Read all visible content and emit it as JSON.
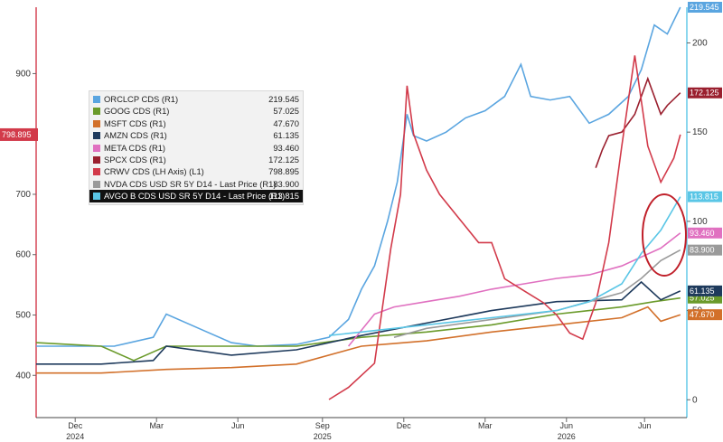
{
  "chart_data": {
    "type": "line",
    "left_axis": {
      "ticks": [
        400,
        500,
        600,
        700,
        800,
        900
      ],
      "range": [
        330,
        1010
      ]
    },
    "right_axis": {
      "ticks": [
        0,
        50,
        100,
        150,
        200
      ],
      "range": [
        -10,
        220
      ]
    },
    "x_labels": [
      {
        "label": "Dec",
        "year": "2024",
        "pos": 0.06
      },
      {
        "label": "Mar",
        "pos": 0.185
      },
      {
        "label": "Jun",
        "pos": 0.31
      },
      {
        "label": "Sep",
        "year": "2025",
        "pos": 0.44
      },
      {
        "label": "Dec",
        "pos": 0.565
      },
      {
        "label": "Mar",
        "pos": 0.69
      },
      {
        "label": "Jun",
        "year": "2026",
        "pos": 0.815
      },
      {
        "label": "Jun",
        "pos": 0.935
      }
    ],
    "series": [
      {
        "name": "ORCLCP CDS (R1)",
        "value": "219.545",
        "color": "#5aa5e0",
        "axis": "right",
        "points": [
          [
            0,
            30
          ],
          [
            0.06,
            30
          ],
          [
            0.12,
            30
          ],
          [
            0.18,
            35
          ],
          [
            0.2,
            48
          ],
          [
            0.25,
            40
          ],
          [
            0.3,
            32
          ],
          [
            0.34,
            30
          ],
          [
            0.4,
            31
          ],
          [
            0.45,
            35
          ],
          [
            0.48,
            45
          ],
          [
            0.5,
            62
          ],
          [
            0.52,
            75
          ],
          [
            0.54,
            100
          ],
          [
            0.555,
            122
          ],
          [
            0.57,
            160
          ],
          [
            0.58,
            148
          ],
          [
            0.6,
            145
          ],
          [
            0.63,
            150
          ],
          [
            0.66,
            158
          ],
          [
            0.69,
            162
          ],
          [
            0.72,
            170
          ],
          [
            0.745,
            188
          ],
          [
            0.76,
            170
          ],
          [
            0.79,
            168
          ],
          [
            0.82,
            170
          ],
          [
            0.85,
            155
          ],
          [
            0.88,
            160
          ],
          [
            0.91,
            170
          ],
          [
            0.93,
            185
          ],
          [
            0.95,
            210
          ],
          [
            0.97,
            205
          ],
          [
            0.99,
            220
          ]
        ]
      },
      {
        "name": "GOOG CDS (R1)",
        "value": "57.025",
        "color": "#6a9a2a",
        "axis": "right",
        "points": [
          [
            0,
            32
          ],
          [
            0.1,
            30
          ],
          [
            0.15,
            22
          ],
          [
            0.2,
            30
          ],
          [
            0.3,
            30
          ],
          [
            0.4,
            30
          ],
          [
            0.5,
            35
          ],
          [
            0.6,
            38
          ],
          [
            0.7,
            42
          ],
          [
            0.8,
            48
          ],
          [
            0.9,
            52
          ],
          [
            0.95,
            55
          ],
          [
            0.99,
            57
          ]
        ]
      },
      {
        "name": "MSFT CDS (R1)",
        "value": "47.670",
        "color": "#d2702a",
        "axis": "right",
        "points": [
          [
            0,
            15
          ],
          [
            0.1,
            15
          ],
          [
            0.2,
            17
          ],
          [
            0.3,
            18
          ],
          [
            0.4,
            20
          ],
          [
            0.5,
            30
          ],
          [
            0.6,
            33
          ],
          [
            0.7,
            38
          ],
          [
            0.8,
            42
          ],
          [
            0.9,
            46
          ],
          [
            0.94,
            52
          ],
          [
            0.96,
            44
          ],
          [
            0.99,
            47.67
          ]
        ]
      },
      {
        "name": "AMZN CDS (R1)",
        "value": "61.135",
        "color": "#1e3a5c",
        "axis": "right",
        "points": [
          [
            0,
            20
          ],
          [
            0.1,
            20
          ],
          [
            0.18,
            22
          ],
          [
            0.2,
            30
          ],
          [
            0.3,
            25
          ],
          [
            0.4,
            28
          ],
          [
            0.5,
            36
          ],
          [
            0.6,
            43
          ],
          [
            0.7,
            50
          ],
          [
            0.8,
            55
          ],
          [
            0.9,
            56
          ],
          [
            0.93,
            66
          ],
          [
            0.96,
            56
          ],
          [
            0.99,
            61
          ]
        ]
      },
      {
        "name": "META CDS (R1)",
        "value": "93.460",
        "color": "#e070c0",
        "axis": "right",
        "points": [
          [
            0.48,
            30
          ],
          [
            0.52,
            48
          ],
          [
            0.55,
            52
          ],
          [
            0.6,
            55
          ],
          [
            0.65,
            58
          ],
          [
            0.7,
            62
          ],
          [
            0.75,
            65
          ],
          [
            0.8,
            68
          ],
          [
            0.85,
            70
          ],
          [
            0.9,
            75
          ],
          [
            0.93,
            80
          ],
          [
            0.96,
            85
          ],
          [
            0.99,
            93.46
          ]
        ]
      },
      {
        "name": "SPCX CDS (R1)",
        "value": "172.125",
        "color": "#9a1f2e",
        "axis": "right",
        "points": [
          [
            0.86,
            130
          ],
          [
            0.87,
            140
          ],
          [
            0.88,
            148
          ],
          [
            0.9,
            150
          ],
          [
            0.92,
            160
          ],
          [
            0.94,
            180
          ],
          [
            0.96,
            160
          ],
          [
            0.97,
            165
          ],
          [
            0.99,
            172
          ]
        ]
      },
      {
        "name": "CRWV CDS (LH Axis) (L1)",
        "value": "798.895",
        "color": "#d23a4a",
        "axis": "left",
        "points": [
          [
            0.45,
            360
          ],
          [
            0.48,
            380
          ],
          [
            0.52,
            420
          ],
          [
            0.545,
            610
          ],
          [
            0.56,
            700
          ],
          [
            0.57,
            880
          ],
          [
            0.58,
            800
          ],
          [
            0.6,
            740
          ],
          [
            0.62,
            700
          ],
          [
            0.65,
            660
          ],
          [
            0.68,
            620
          ],
          [
            0.7,
            620
          ],
          [
            0.72,
            560
          ],
          [
            0.75,
            540
          ],
          [
            0.78,
            520
          ],
          [
            0.8,
            500
          ],
          [
            0.82,
            470
          ],
          [
            0.84,
            460
          ],
          [
            0.86,
            520
          ],
          [
            0.88,
            620
          ],
          [
            0.9,
            780
          ],
          [
            0.92,
            930
          ],
          [
            0.94,
            780
          ],
          [
            0.96,
            720
          ],
          [
            0.98,
            760
          ],
          [
            0.99,
            798.895
          ]
        ]
      },
      {
        "name": "NVDA CDS USD SR 5Y D14 - Last Price (R1)",
        "value": "83.900",
        "color": "#9a9a9a",
        "axis": "right",
        "points": [
          [
            0.55,
            35
          ],
          [
            0.6,
            40
          ],
          [
            0.7,
            45
          ],
          [
            0.8,
            50
          ],
          [
            0.85,
            55
          ],
          [
            0.9,
            60
          ],
          [
            0.93,
            68
          ],
          [
            0.96,
            78
          ],
          [
            0.99,
            83.9
          ]
        ]
      },
      {
        "name": "AVGO B CDS USD SR 5Y D14 - Last Price (R1)",
        "value": "113.815",
        "color": "#5ac6e6",
        "axis": "right",
        "points": [
          [
            0.45,
            36
          ],
          [
            0.5,
            38
          ],
          [
            0.55,
            40
          ],
          [
            0.6,
            42
          ],
          [
            0.65,
            44
          ],
          [
            0.7,
            46
          ],
          [
            0.75,
            48
          ],
          [
            0.8,
            50
          ],
          [
            0.85,
            55
          ],
          [
            0.9,
            65
          ],
          [
            0.93,
            82
          ],
          [
            0.96,
            95
          ],
          [
            0.99,
            113.815
          ]
        ]
      }
    ],
    "left_labels": [
      {
        "text": "798.895",
        "color": "#d23a4a"
      }
    ]
  }
}
